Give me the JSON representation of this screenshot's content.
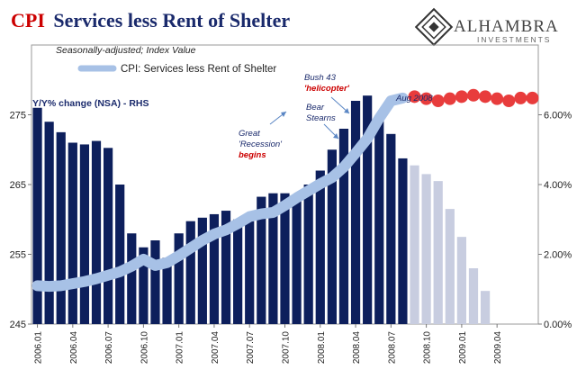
{
  "header": {
    "title_accent": "CPI",
    "title_rest": "Services less Rent of Shelter",
    "subtitle": "Seasonally-adjusted; Index Value",
    "legend_label": "CPI: Services less Rent of Shelter",
    "rhs_label": "Y/Y% change (NSA) - RHS"
  },
  "brand": {
    "name": "ALHAMBRA",
    "tagline": "INVESTMENTS"
  },
  "annotations": [
    {
      "lines": [
        "Great",
        "'Recession'"
      ],
      "emph": "begins",
      "emph_color": "#cc0000"
    },
    {
      "lines": [
        "Bear",
        "Stearns"
      ],
      "emph": "",
      "emph_color": "#cc0000"
    },
    {
      "lines": [
        "Bush 43"
      ],
      "emph": "'helicopter'",
      "emph_color": "#cc0000"
    },
    {
      "lines": [
        "Aug 2008"
      ],
      "emph": "",
      "emph_color": "#cc0000"
    }
  ],
  "colors": {
    "title_accent": "#cc0000",
    "title_rest": "#1a2a6c",
    "bar_dark": "#0d1f5c",
    "bar_light": "#c8cde0",
    "index_line": "#a7c1e6",
    "projection": "#e83c3c",
    "text_navy": "#1a2a6c"
  },
  "chart_data": {
    "type": "bar+line",
    "categories": [
      "2006.01",
      "2006.02",
      "2006.03",
      "2006.04",
      "2006.05",
      "2006.06",
      "2006.07",
      "2006.08",
      "2006.09",
      "2006.10",
      "2006.11",
      "2006.12",
      "2007.01",
      "2007.02",
      "2007.03",
      "2007.04",
      "2007.05",
      "2007.06",
      "2007.07",
      "2007.08",
      "2007.09",
      "2007.10",
      "2007.11",
      "2007.12",
      "2008.01",
      "2008.02",
      "2008.03",
      "2008.04",
      "2008.05",
      "2008.06",
      "2008.07",
      "2008.08",
      "2008.09",
      "2008.10",
      "2008.11",
      "2008.12",
      "2009.01",
      "2009.02",
      "2009.03",
      "2009.04",
      "2009.05",
      "2009.06",
      "2009.07"
    ],
    "x_tick_labels": [
      "2006.01",
      "2006.04",
      "2006.07",
      "2006.10",
      "2007.01",
      "2007.04",
      "2007.07",
      "2007.10",
      "2008.01",
      "2008.04",
      "2008.07",
      "2008.10",
      "2009.01",
      "2009.04"
    ],
    "yoy_pct_rhs": [
      6.2,
      5.8,
      5.5,
      5.2,
      5.15,
      5.25,
      5.05,
      4.0,
      2.6,
      2.2,
      2.4,
      1.9,
      2.6,
      2.95,
      3.05,
      3.15,
      3.25,
      3.0,
      2.95,
      3.65,
      3.75,
      3.75,
      3.65,
      4.0,
      4.4,
      5.0,
      5.6,
      6.4,
      6.55,
      5.95,
      5.45,
      4.75,
      4.55,
      4.3,
      4.1,
      3.3,
      2.5,
      1.6,
      0.95
    ],
    "yoy_split_index": 32,
    "index_lhs": [
      250.5,
      250.4,
      250.5,
      250.8,
      251.1,
      251.5,
      252.0,
      252.5,
      253.3,
      254.3,
      253.4,
      253.8,
      254.8,
      255.9,
      257.0,
      257.9,
      258.5,
      259.4,
      260.4,
      260.8,
      261.0,
      262.0,
      263.1,
      264.1,
      265.1,
      266.0,
      267.5,
      269.5,
      271.6,
      274.5,
      277.0,
      277.4
    ],
    "index_projection": [
      277.6,
      277.3,
      277.0,
      277.3,
      277.6,
      277.8,
      277.6,
      277.3,
      277.0,
      277.4,
      277.4
    ],
    "y_left": {
      "min": 245,
      "max": 285,
      "ticks": [
        245,
        255,
        265,
        275
      ]
    },
    "y_right": {
      "min": 0,
      "max": 8,
      "ticks": [
        0,
        2,
        4,
        6
      ],
      "tick_labels": [
        "0.00%",
        "2.00%",
        "4.00%",
        "6.00%"
      ]
    },
    "legend_position": "top-left",
    "grid": false
  }
}
